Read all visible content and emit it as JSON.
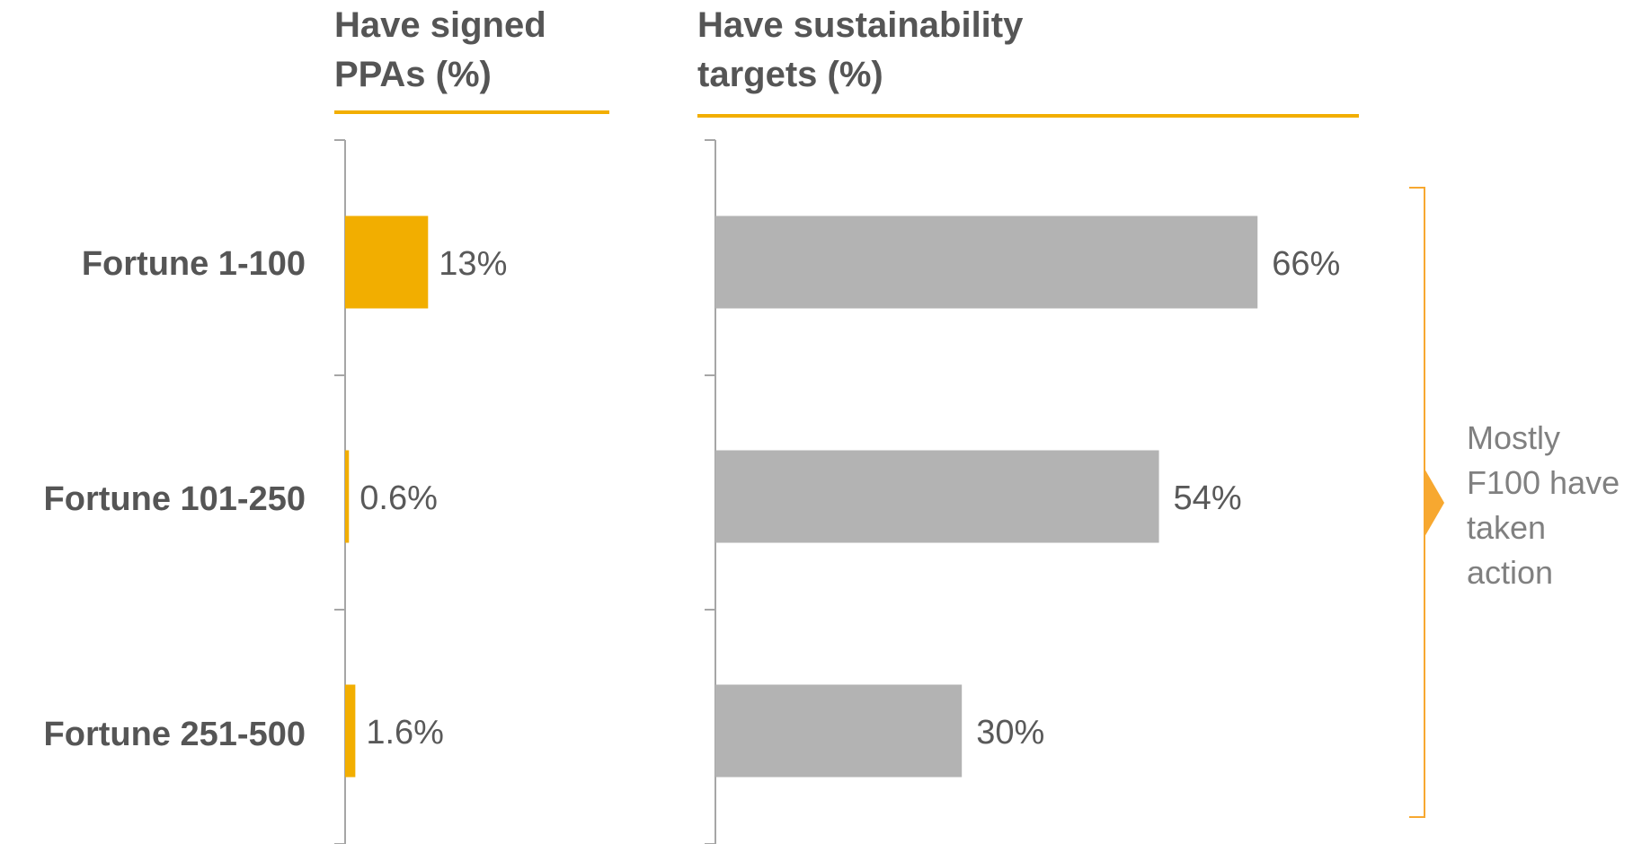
{
  "chart_data": {
    "type": "bar",
    "orientation": "horizontal",
    "categories": [
      "Fortune 1-100",
      "Fortune 101-250",
      "Fortune 251-500"
    ],
    "panels": [
      {
        "title_lines": [
          "Have signed",
          "PPAs (%)"
        ],
        "values": [
          13,
          0.6,
          1.6
        ],
        "value_labels": [
          "13%",
          "0.6%",
          "1.6%"
        ],
        "color": "#F2AE00"
      },
      {
        "title_lines": [
          "Have sustainability",
          "targets (%)"
        ],
        "values": [
          66,
          54,
          30
        ],
        "value_labels": [
          "66%",
          "54%",
          "30%"
        ],
        "color": "#B3B3B3"
      }
    ],
    "annotation": {
      "lines": [
        "Mostly",
        "F100 have",
        "taken",
        "action"
      ],
      "bracket_color": "#F7A830"
    },
    "header_rule_color": "#F2AE00",
    "axis_color": "#A6A6A6",
    "grid": false,
    "legend": "none"
  }
}
